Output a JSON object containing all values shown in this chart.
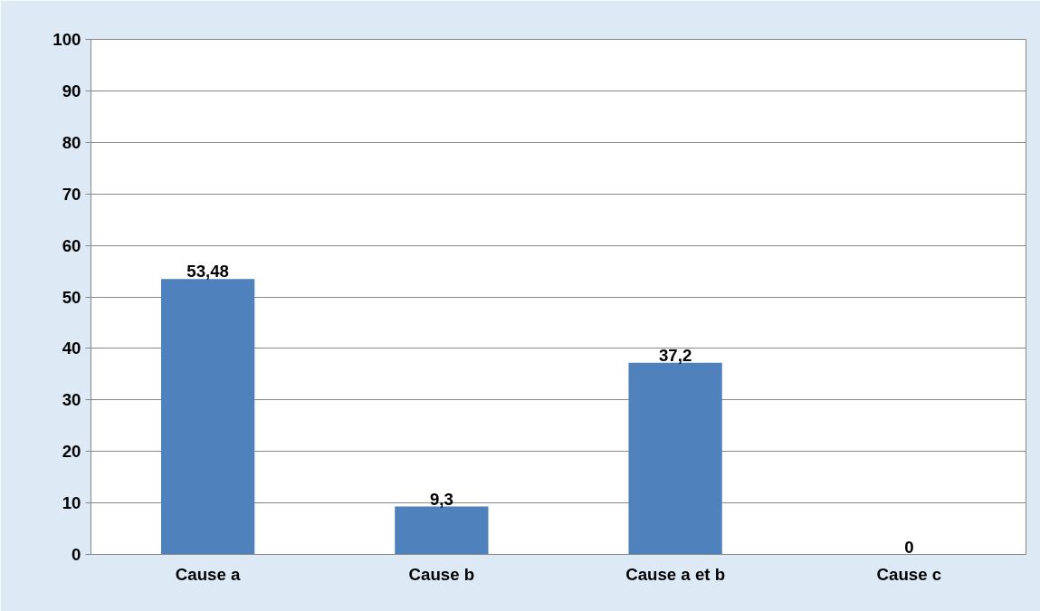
{
  "chart_data": {
    "type": "bar",
    "categories": [
      "Cause a",
      "Cause b",
      "Cause a et b",
      "Cause c"
    ],
    "values": [
      53.48,
      9.3,
      37.2,
      0
    ],
    "value_labels": [
      "53,48",
      "9,3",
      "37,2",
      "0"
    ],
    "color": "#4f81bd",
    "ylim": [
      0,
      100
    ],
    "yticks": [
      0,
      10,
      20,
      30,
      40,
      50,
      60,
      70,
      80,
      90,
      100
    ],
    "grid": "y"
  }
}
